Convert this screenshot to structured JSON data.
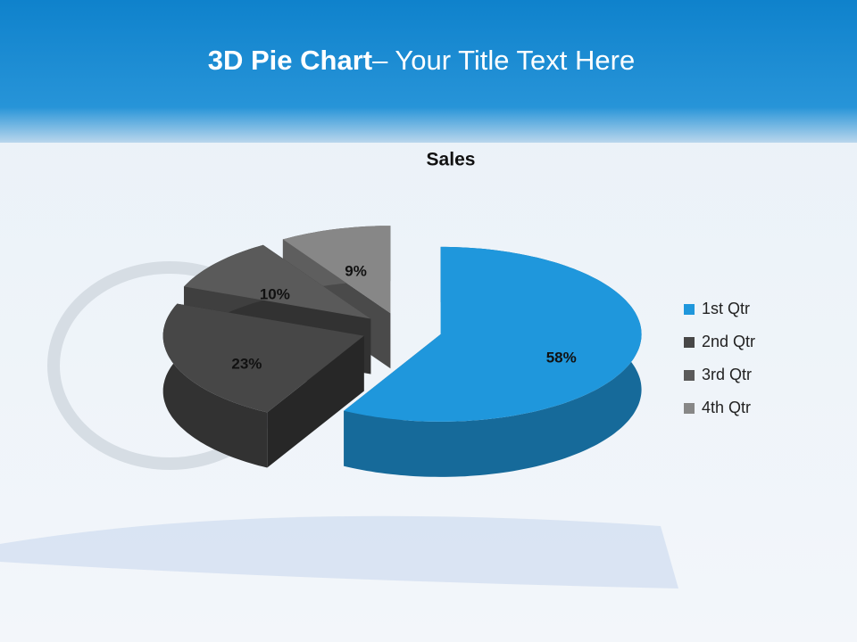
{
  "slide_title": {
    "bold": "3D Pie Chart",
    "rest": "– Your Title Text Here"
  },
  "chart_data": {
    "type": "pie",
    "title": "Sales",
    "categories": [
      "1st Qtr",
      "2nd Qtr",
      "3rd Qtr",
      "4th Qtr"
    ],
    "values": [
      58,
      23,
      10,
      9
    ],
    "value_labels": [
      "58%",
      "23%",
      "10%",
      "9%"
    ],
    "colors": [
      "#1f97dc",
      "#474747",
      "#5a5a5a",
      "#878787"
    ],
    "legend": "right"
  }
}
